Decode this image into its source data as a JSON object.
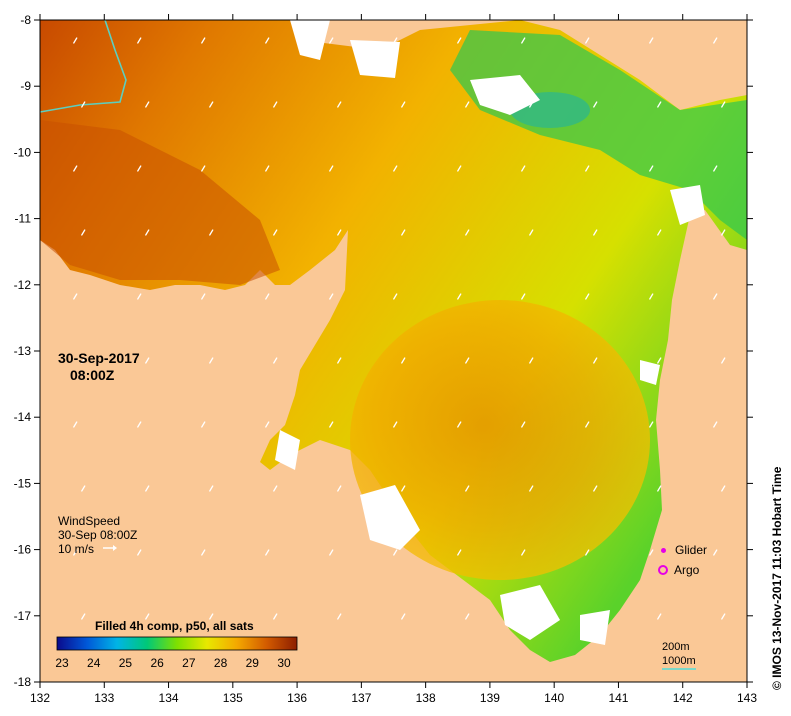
{
  "map": {
    "x_ticks": [
      "132",
      "133",
      "134",
      "135",
      "136",
      "137",
      "138",
      "139",
      "140",
      "141",
      "142",
      "143"
    ],
    "y_ticks": [
      "-8",
      "-9",
      "-10",
      "-11",
      "-12",
      "-13",
      "-14",
      "-15",
      "-16",
      "-17",
      "-18"
    ],
    "date_line1": "30-Sep-2017",
    "date_line2": "08:00Z",
    "wind": {
      "title": "WindSpeed",
      "time": "30-Sep 08:00Z",
      "scale": "10 m/s"
    },
    "legend": {
      "glider": "Glider",
      "argo": "Argo"
    },
    "colorbar": {
      "title": "Filled 4h comp, p50, all sats",
      "ticks": [
        "23",
        "24",
        "25",
        "26",
        "27",
        "28",
        "29",
        "30"
      ],
      "colors": [
        "#0a0a8c",
        "#0058d8",
        "#00b4e6",
        "#00c878",
        "#7fe000",
        "#e8e800",
        "#f4a800",
        "#d25a00",
        "#8c1e00"
      ]
    },
    "depth": {
      "line1": "200m",
      "line2": "1000m"
    },
    "credit": "© IMOS 13-Nov-2017 11:03 Hobart Time",
    "colors": {
      "land": "#fac896",
      "cloud": "#ffffff",
      "contour": "#5ccfbf"
    }
  }
}
